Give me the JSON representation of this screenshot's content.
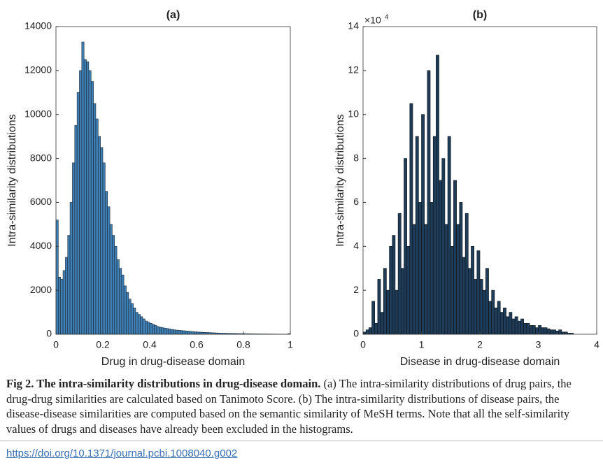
{
  "chart_data": [
    {
      "type": "histogram",
      "title": "(a)",
      "xlabel": "Drug in drug-disease domain",
      "ylabel": "Intra-similarity distributions",
      "color": "#3f7fb3",
      "edge_color": "#1a2a3a",
      "bins": [
        0,
        0.01,
        0.02,
        0.03,
        0.04,
        0.05,
        0.06,
        0.07,
        0.08,
        0.09,
        0.1,
        0.11,
        0.12,
        0.13,
        0.14,
        0.15,
        0.16,
        0.17,
        0.18,
        0.19,
        0.2,
        0.21,
        0.22,
        0.23,
        0.24,
        0.25,
        0.26,
        0.27,
        0.28,
        0.29,
        0.3,
        0.31,
        0.32,
        0.33,
        0.34,
        0.35,
        0.36,
        0.37,
        0.38,
        0.39,
        0.4,
        0.41,
        0.42,
        0.43,
        0.44,
        0.45,
        0.46,
        0.47,
        0.48,
        0.49,
        0.5,
        0.51,
        0.52,
        0.53,
        0.54,
        0.55,
        0.56,
        0.57,
        0.58,
        0.59,
        0.6,
        0.61,
        0.62,
        0.63,
        0.64,
        0.65,
        0.66,
        0.67,
        0.68,
        0.69,
        0.7,
        0.71,
        0.72,
        0.73,
        0.74,
        0.75,
        0.76,
        0.77,
        0.78,
        0.79,
        0.8,
        0.81,
        0.82,
        0.83,
        0.84,
        0.85,
        0.86,
        0.87,
        0.88,
        0.89,
        0.9,
        0.91,
        0.92,
        0.93,
        0.94,
        0.95,
        0.96,
        0.97,
        0.98,
        0.99,
        1
      ],
      "values": [
        5200,
        2600,
        2500,
        2900,
        3500,
        4500,
        6000,
        7800,
        9500,
        11000,
        12000,
        13300,
        12500,
        12400,
        12000,
        11500,
        10500,
        9800,
        9000,
        8500,
        7800,
        6500,
        5800,
        5000,
        4500,
        4000,
        3400,
        3000,
        2700,
        2200,
        1900,
        1600,
        1400,
        1200,
        1000,
        900,
        800,
        700,
        600,
        550,
        500,
        450,
        400,
        350,
        320,
        300,
        280,
        260,
        240,
        220,
        200,
        190,
        180,
        170,
        160,
        150,
        140,
        130,
        120,
        110,
        100,
        95,
        90,
        85,
        80,
        75,
        70,
        65,
        60,
        55,
        50,
        48,
        45,
        42,
        40,
        38,
        35,
        32,
        30,
        28,
        26,
        24,
        22,
        20,
        18,
        16,
        15,
        14,
        13,
        12,
        11,
        10,
        9,
        8,
        7,
        6,
        5,
        5,
        4,
        30
      ],
      "xlim": [
        0,
        1
      ],
      "xticks": [
        0,
        0.2,
        0.4,
        0.6,
        0.8,
        1
      ],
      "ylim": [
        0,
        14000
      ],
      "yticks": [
        0,
        2000,
        4000,
        6000,
        8000,
        10000,
        12000,
        14000
      ]
    },
    {
      "type": "histogram",
      "title": "(b)",
      "xlabel": "Disease in drug-disease domain",
      "ylabel": "Intra-similarity distributions",
      "y_multiplier": "×10",
      "y_multiplier_exponent": "4",
      "color": "#1f3d58",
      "edge_color": "#0a0f14",
      "bins": [
        0,
        0.05,
        0.1,
        0.15,
        0.2,
        0.25,
        0.3,
        0.35,
        0.4,
        0.45,
        0.5,
        0.55,
        0.6,
        0.65,
        0.7,
        0.75,
        0.8,
        0.85,
        0.9,
        0.95,
        1,
        1.05,
        1.1,
        1.15,
        1.2,
        1.25,
        1.3,
        1.35,
        1.4,
        1.45,
        1.5,
        1.55,
        1.6,
        1.65,
        1.7,
        1.75,
        1.8,
        1.85,
        1.9,
        1.95,
        2,
        2.05,
        2.1,
        2.15,
        2.2,
        2.25,
        2.3,
        2.35,
        2.4,
        2.45,
        2.5,
        2.55,
        2.6,
        2.65,
        2.7,
        2.75,
        2.8,
        2.85,
        2.9,
        2.95,
        3,
        3.05,
        3.1,
        3.15,
        3.2,
        3.25,
        3.3,
        3.35,
        3.4,
        3.45,
        3.5,
        3.55,
        3.6
      ],
      "values": [
        0.1,
        0.2,
        0.3,
        1.5,
        0.5,
        2.5,
        1,
        3,
        2,
        4,
        4.5,
        2,
        5.5,
        3,
        8,
        4,
        10.5,
        5,
        9,
        6,
        10,
        5,
        12,
        6,
        9,
        12.7,
        7,
        8,
        5,
        9,
        4,
        7,
        5,
        6,
        3.5,
        5.5,
        3,
        4,
        2.5,
        3.8,
        2.5,
        2,
        3,
        1.5,
        2,
        1.2,
        1.5,
        1,
        1.2,
        0.8,
        1,
        0.7,
        0.8,
        0.6,
        0.7,
        0.5,
        0.5,
        0.4,
        0.4,
        0.3,
        0.4,
        0.3,
        0.3,
        0.25,
        0.2,
        0.2,
        0.15,
        0.2,
        0.1,
        0.1,
        0.05,
        0.05
      ],
      "xlim": [
        0,
        4
      ],
      "xticks": [
        0,
        1,
        2,
        3,
        4
      ],
      "ylim": [
        0,
        14
      ],
      "yticks": [
        0,
        2,
        4,
        6,
        8,
        10,
        12,
        14
      ]
    }
  ],
  "caption": {
    "label": "Fig 2. The intra-similarity distributions in drug-disease domain.",
    "text": "(a) The intra-similarity distributions of drug pairs, the drug-drug similarities are calculated based on Tanimoto Score. (b) The intra-similarity distributions of disease pairs, the disease-disease similarities are computed based on the semantic similarity of MeSH terms. Note that all the self-similarity values of drugs and diseases have already been excluded in the histograms."
  },
  "link": "https://doi.org/10.1371/journal.pcbi.1008040.g002"
}
